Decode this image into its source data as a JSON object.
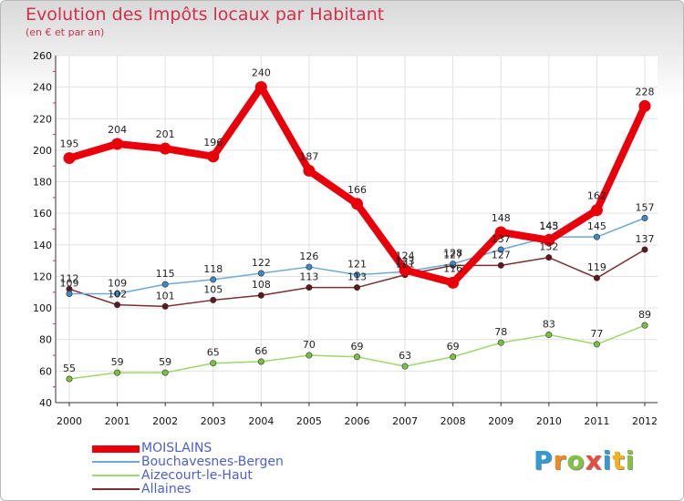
{
  "title": "Evolution des Impôts locaux par Habitant",
  "subtitle": "(en € et par an)",
  "logo": {
    "text": "Proxiti",
    "colors": [
      "#2f9ad6",
      "#f08a1d",
      "#84c341",
      "#e94c3d",
      "#2f9ad6",
      "#f5b21a",
      "#84c341"
    ]
  },
  "colors": {
    "title": "#d2304a",
    "legend_text": "#4b5fd1"
  },
  "chart_data": {
    "type": "line",
    "title": "Evolution des Impôts locaux par Habitant",
    "subtitle": "(en € et par an)",
    "xlabel": "",
    "ylabel": "",
    "x": [
      "2000",
      "2001",
      "2002",
      "2003",
      "2004",
      "2005",
      "2006",
      "2007",
      "2008",
      "2009",
      "2010",
      "2011",
      "2012"
    ],
    "ylim": [
      40,
      260
    ],
    "yticks": [
      40,
      60,
      80,
      100,
      120,
      140,
      160,
      180,
      200,
      220,
      240,
      260
    ],
    "grid": true,
    "legend_position": "bottom-left",
    "series": [
      {
        "name": "Aizecourt-le-Haut",
        "color": "#9dd869",
        "marker": "#7cc043",
        "values": [
          55,
          59,
          59,
          65,
          66,
          70,
          69,
          63,
          69,
          78,
          83,
          77,
          89
        ],
        "labels": [
          "55",
          "59",
          "59",
          "65",
          "66",
          "70",
          "69",
          "63",
          "69",
          "78",
          "83",
          "77",
          "89"
        ]
      },
      {
        "name": "Allaines",
        "color": "#7a2f33",
        "marker": "#5c1a1e",
        "values": [
          112,
          102,
          101,
          105,
          108,
          113,
          113,
          121,
          127,
          127,
          132,
          119,
          137
        ],
        "labels": [
          "112",
          "102",
          "101",
          "105",
          "108",
          "113",
          "113",
          "121",
          "127",
          "127",
          "132",
          "119",
          "137"
        ]
      },
      {
        "name": "Bouchavesnes-Bergen",
        "color": "#6fa8d6",
        "marker": "#3c88c8",
        "values": [
          109,
          109,
          115,
          118,
          122,
          126,
          121,
          123,
          128,
          137,
          145,
          145,
          157
        ],
        "labels": [
          "109",
          "109",
          "115",
          "118",
          "122",
          "126",
          "121",
          "123",
          "128",
          "137",
          "145",
          "145",
          "157"
        ]
      },
      {
        "name": "MOISLAINS",
        "color": "#e8000b",
        "marker": "#e8000b",
        "values": [
          195,
          204,
          201,
          196,
          240,
          187,
          166,
          124,
          116,
          148,
          143,
          162,
          228
        ],
        "labels": [
          "195",
          "204",
          "201",
          "196",
          "240",
          "187",
          "166",
          "124",
          "116",
          "148",
          "143",
          "162",
          "228"
        ]
      }
    ]
  },
  "legend": [
    {
      "name": "MOISLAINS",
      "color": "#e8000b",
      "thickness": "thick"
    },
    {
      "name": "Bouchavesnes-Bergen",
      "color": "#6fa8d6",
      "thickness": "thin"
    },
    {
      "name": "Aizecourt-le-Haut",
      "color": "#9dd869",
      "thickness": "thin"
    },
    {
      "name": "Allaines",
      "color": "#7a2f33",
      "thickness": "thin"
    }
  ]
}
